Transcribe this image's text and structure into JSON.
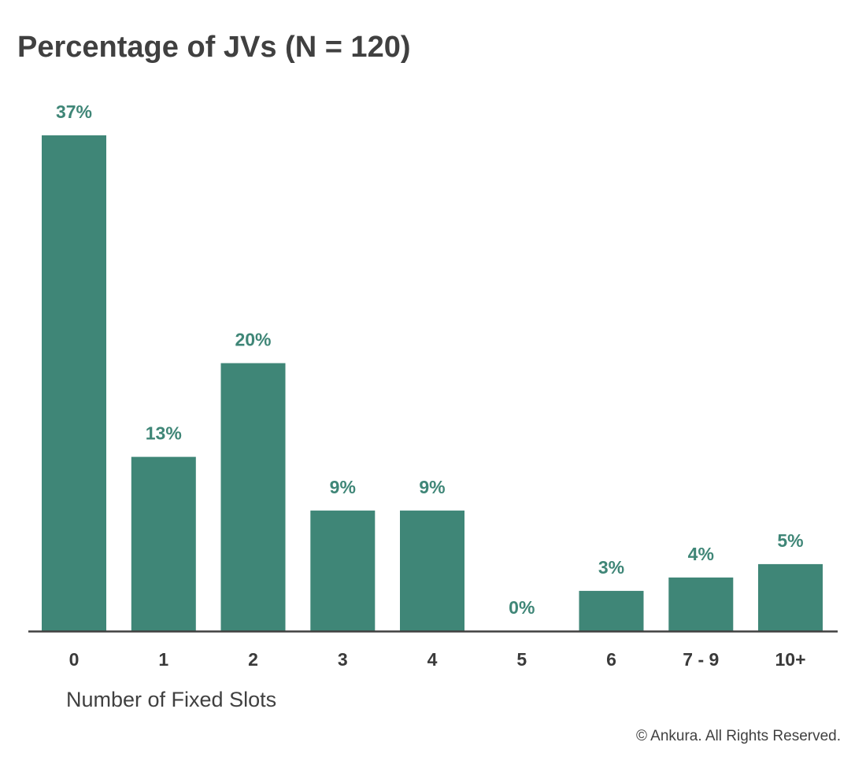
{
  "chart_data": {
    "type": "bar",
    "title": "Percentage of JVs (N = 120)",
    "xlabel": "Number of Fixed Slots",
    "ylabel": "",
    "categories": [
      "0",
      "1",
      "2",
      "3",
      "4",
      "5",
      "6",
      "7 - 9",
      "10+"
    ],
    "values": [
      37,
      13,
      20,
      9,
      9,
      0,
      3,
      4,
      5
    ],
    "data_labels": [
      "37%",
      "13%",
      "20%",
      "9%",
      "9%",
      "0%",
      "3%",
      "4%",
      "5%"
    ],
    "value_unit": "%",
    "ylim": [
      0,
      37
    ],
    "grid": false,
    "legend": "none",
    "bar_color": "#3f8677",
    "label_color": "#3f8677",
    "axis_color": "#404040"
  },
  "footer": {
    "copyright": "© Ankura. All Rights Reserved."
  }
}
